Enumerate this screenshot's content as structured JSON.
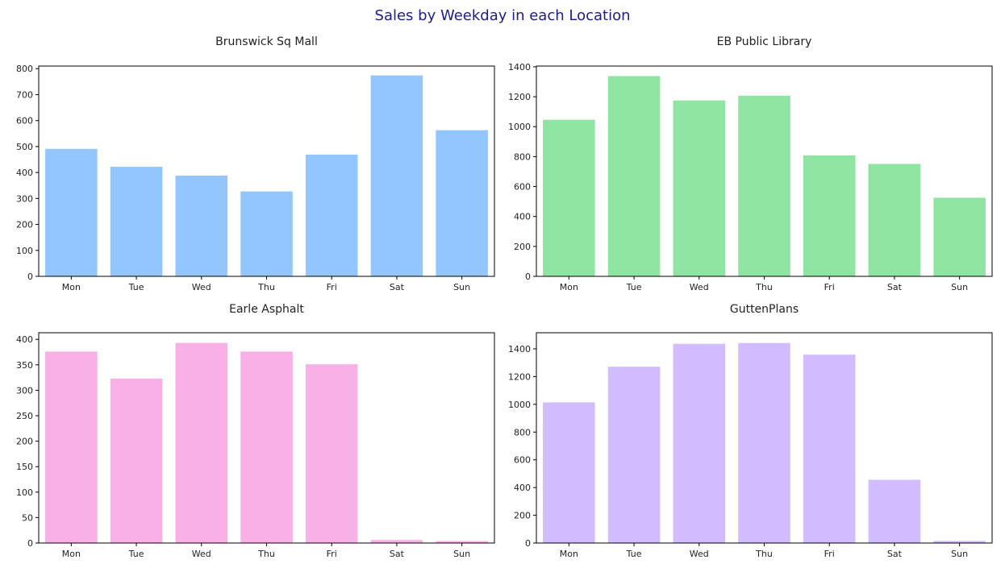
{
  "title": "Sales by Weekday in each Location",
  "chart_data": [
    {
      "type": "bar",
      "title": "Brunswick Sq Mall",
      "categories": [
        "Mon",
        "Tue",
        "Wed",
        "Thu",
        "Fri",
        "Sat",
        "Sun"
      ],
      "values": [
        491,
        422,
        388,
        327,
        469,
        774,
        563
      ],
      "ylim": [
        0,
        810
      ],
      "yticks": [
        0,
        100,
        200,
        300,
        400,
        500,
        600,
        700,
        800
      ],
      "color": "#93c6fe"
    },
    {
      "type": "bar",
      "title": "EB Public Library",
      "categories": [
        "Mon",
        "Tue",
        "Wed",
        "Thu",
        "Fri",
        "Sat",
        "Sun"
      ],
      "values": [
        1046,
        1338,
        1175,
        1207,
        808,
        751,
        525
      ],
      "ylim": [
        0,
        1405
      ],
      "yticks": [
        0,
        200,
        400,
        600,
        800,
        1000,
        1200,
        1400
      ],
      "color": "#8ee4a0"
    },
    {
      "type": "bar",
      "title": "Earle Asphalt",
      "categories": [
        "Mon",
        "Tue",
        "Wed",
        "Thu",
        "Fri",
        "Sat",
        "Sun"
      ],
      "values": [
        376,
        323,
        393,
        376,
        351,
        6,
        4
      ],
      "ylim": [
        0,
        413
      ],
      "yticks": [
        0,
        50,
        100,
        150,
        200,
        250,
        300,
        350,
        400
      ],
      "color": "#f8b0e6"
    },
    {
      "type": "bar",
      "title": "GuttenPlans",
      "categories": [
        "Mon",
        "Tue",
        "Wed",
        "Thu",
        "Fri",
        "Sat",
        "Sun"
      ],
      "values": [
        1014,
        1271,
        1436,
        1442,
        1358,
        456,
        15
      ],
      "ylim": [
        0,
        1516
      ],
      "yticks": [
        0,
        200,
        400,
        600,
        800,
        1000,
        1200,
        1400
      ],
      "color": "#d0bcfe"
    }
  ]
}
